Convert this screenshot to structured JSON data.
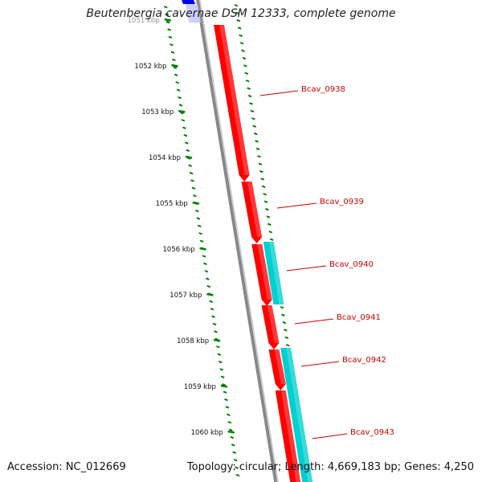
{
  "title": "Beutenbergia cavernae DSM 12333, complete genome",
  "footer": {
    "accession": "Accession: NC_012669",
    "summary": "Topology: circular; Length: 4,669,183 bp; Genes: 4,250"
  },
  "colors": {
    "forward_gene": "#ff0000",
    "reverse_gene": "#00d0d0",
    "ruler_ticks": "#008000",
    "backbone": "#888888",
    "label": "#cc0000",
    "top_feature": "#0000ee"
  },
  "ruler": {
    "labels": [
      "1051 kbp",
      "1052 kbp",
      "1053 kbp",
      "1054 kbp",
      "1055 kbp",
      "1056 kbp",
      "1057 kbp",
      "1058 kbp",
      "1059 kbp",
      "1060 kbp"
    ]
  },
  "genes": [
    {
      "name": "Bcav_0938",
      "strand": "forward"
    },
    {
      "name": "Bcav_0939",
      "strand": "forward"
    },
    {
      "name": "Bcav_0940",
      "strand": "reverse"
    },
    {
      "name": "Bcav_0941",
      "strand": "forward"
    },
    {
      "name": "Bcav_0942",
      "strand": "reverse"
    },
    {
      "name": "Bcav_0943",
      "strand": "forward"
    }
  ]
}
